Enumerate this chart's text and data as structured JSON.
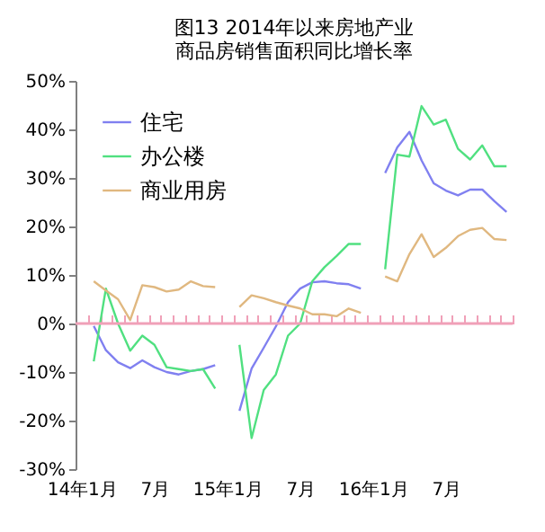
{
  "chart_data": {
    "type": "line",
    "title": [
      "图13  2014年以来房地产业",
      "商品房销售面积同比增长率"
    ],
    "categories": [
      "14年1月",
      null,
      null,
      null,
      null,
      null,
      "7月",
      null,
      null,
      null,
      null,
      null,
      "15年1月",
      null,
      null,
      null,
      null,
      null,
      "7月",
      null,
      null,
      null,
      null,
      null,
      "16年1月",
      null,
      null,
      null,
      null,
      null,
      "7月",
      null,
      null,
      null,
      null,
      null
    ],
    "series": [
      {
        "name": "住宅",
        "color": "#8080f0",
        "values": [
          null,
          -0.5,
          -5.5,
          -8.0,
          -9.2,
          -7.6,
          -9.0,
          -10.0,
          -10.5,
          -9.8,
          -9.4,
          -8.6,
          null,
          -18.0,
          -9.3,
          -5.0,
          -0.6,
          4.4,
          7.2,
          8.5,
          8.7,
          8.3,
          8.1,
          7.2,
          null,
          31.0,
          36.3,
          39.5,
          33.6,
          28.9,
          27.4,
          26.4,
          27.6,
          27.6,
          25.2,
          23.0
        ]
      },
      {
        "name": "办公楼",
        "color": "#50e080",
        "values": [
          null,
          -7.8,
          7.2,
          0.0,
          -5.6,
          -2.5,
          -4.4,
          -9.0,
          -9.4,
          -9.8,
          -9.4,
          -13.4,
          null,
          -4.4,
          -23.6,
          -13.7,
          -10.5,
          -2.5,
          0.0,
          8.7,
          11.6,
          13.9,
          16.4,
          16.4,
          null,
          11.2,
          34.8,
          34.4,
          44.8,
          41.0,
          42.0,
          36.0,
          33.8,
          36.7,
          32.4,
          32.4
        ]
      },
      {
        "name": "商业用房",
        "color": "#e0b880",
        "values": [
          null,
          8.7,
          6.8,
          5.0,
          0.7,
          7.9,
          7.5,
          6.6,
          7.0,
          8.7,
          7.7,
          7.5,
          null,
          3.4,
          5.8,
          5.2,
          4.4,
          3.7,
          3.1,
          1.9,
          1.9,
          1.5,
          3.1,
          2.2,
          null,
          9.7,
          8.7,
          14.3,
          18.4,
          13.7,
          15.6,
          18.0,
          19.3,
          19.7,
          17.4,
          17.2
        ]
      }
    ],
    "ylim": [
      -30,
      50
    ],
    "yticks": [
      {
        "value": -30,
        "label": "-30%"
      },
      {
        "value": -20,
        "label": "-20%"
      },
      {
        "value": -10,
        "label": "-10%"
      },
      {
        "value": 0,
        "label": "0%"
      },
      {
        "value": 10,
        "label": "10%"
      },
      {
        "value": 20,
        "label": "20%"
      },
      {
        "value": 30,
        "label": "30%"
      },
      {
        "value": 40,
        "label": "40%"
      },
      {
        "value": 50,
        "label": "50%"
      }
    ],
    "ref_lines": [
      {
        "axis": "y",
        "value": 0,
        "color": "#f0a0b8"
      }
    ],
    "grid": false,
    "legend": "top left",
    "marker": "none",
    "line_style": "solid"
  }
}
